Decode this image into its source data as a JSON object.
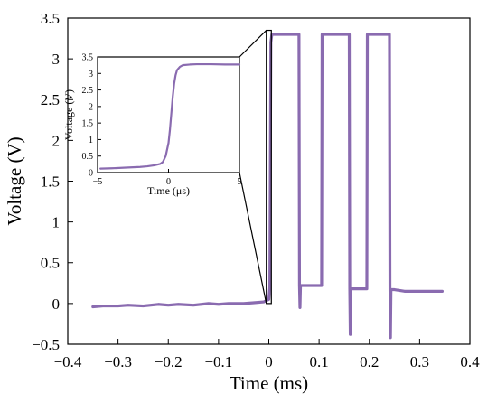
{
  "chart_data": [
    {
      "type": "line",
      "title": "",
      "xlabel": "Time (ms)",
      "ylabel": "Voltage (V)",
      "xlim": [
        -0.4,
        0.4
      ],
      "ylim": [
        -0.5,
        3.5
      ],
      "xticks": [
        -0.4,
        -0.3,
        -0.2,
        -0.1,
        0,
        0.1,
        0.2,
        0.3,
        0.4
      ],
      "xtick_labels": [
        "−0.4",
        "−0.3",
        "−0.2",
        "−0.1",
        "0",
        "0.1",
        "0.2",
        "0.3",
        "0.4"
      ],
      "yticks": [
        -0.5,
        0,
        0.5,
        1,
        1.5,
        2,
        2.5,
        3,
        3.5
      ],
      "ytick_labels": [
        "−0.5",
        "0",
        "0.5",
        "1",
        "1.5",
        "2",
        "2.5",
        "3",
        "3.5"
      ],
      "grid": false,
      "color": "#8a6bb0",
      "series": [
        {
          "x": [
            -0.35,
            -0.33,
            -0.3,
            -0.28,
            -0.25,
            -0.22,
            -0.2,
            -0.18,
            -0.15,
            -0.12,
            -0.1,
            -0.08,
            -0.05,
            -0.03,
            -0.01,
            0.0,
            0.002,
            0.004,
            0.006,
            0.008,
            0.06,
            0.061,
            0.062,
            0.063,
            0.07,
            0.08,
            0.09,
            0.1,
            0.105,
            0.106,
            0.107,
            0.108,
            0.12,
            0.14,
            0.16,
            0.161,
            0.162,
            0.163,
            0.17,
            0.18,
            0.19,
            0.195,
            0.196,
            0.197,
            0.198,
            0.21,
            0.23,
            0.24,
            0.241,
            0.242,
            0.243,
            0.25,
            0.27,
            0.3,
            0.32,
            0.345
          ],
          "y": [
            -0.04,
            -0.03,
            -0.03,
            -0.02,
            -0.03,
            -0.01,
            -0.02,
            -0.01,
            -0.02,
            0.0,
            -0.01,
            0.0,
            0.0,
            0.01,
            0.02,
            0.05,
            0.2,
            3.2,
            3.3,
            3.3,
            3.3,
            0.22,
            -0.05,
            0.22,
            0.22,
            0.22,
            0.22,
            0.22,
            0.22,
            3.3,
            3.3,
            3.3,
            3.3,
            3.3,
            3.3,
            0.18,
            -0.38,
            0.18,
            0.18,
            0.18,
            0.18,
            0.18,
            3.3,
            3.3,
            3.3,
            3.3,
            3.3,
            3.3,
            0.17,
            -0.42,
            0.17,
            0.17,
            0.15,
            0.15,
            0.15,
            0.15
          ]
        }
      ]
    },
    {
      "type": "line",
      "title": "",
      "xlabel": "Time (μs)",
      "ylabel": "Voltage (V)",
      "xlim": [
        -5,
        5
      ],
      "ylim": [
        0,
        3.5
      ],
      "xticks": [
        -5,
        0,
        5
      ],
      "xtick_labels": [
        "−5",
        "0",
        "5"
      ],
      "yticks": [
        0,
        0.5,
        1,
        1.5,
        2,
        2.5,
        3,
        3.5
      ],
      "ytick_labels": [
        "0",
        "0.5",
        "1",
        "1.5",
        "2",
        "2.5",
        "3",
        "3.5"
      ],
      "grid": false,
      "color": "#8a6bb0",
      "series": [
        {
          "x": [
            -4.8,
            -4,
            -3,
            -2,
            -1.5,
            -1,
            -0.6,
            -0.4,
            -0.2,
            0,
            0.1,
            0.2,
            0.3,
            0.4,
            0.5,
            0.6,
            0.8,
            1,
            1.5,
            2,
            3,
            4,
            5
          ],
          "y": [
            0.12,
            0.13,
            0.15,
            0.17,
            0.19,
            0.22,
            0.26,
            0.32,
            0.5,
            0.9,
            1.3,
            1.8,
            2.3,
            2.7,
            2.95,
            3.1,
            3.2,
            3.25,
            3.27,
            3.28,
            3.28,
            3.27,
            3.27
          ]
        }
      ]
    }
  ]
}
